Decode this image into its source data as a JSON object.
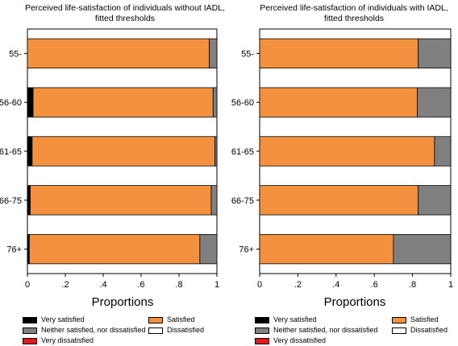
{
  "chart_data": [
    {
      "type": "bar",
      "orientation": "horizontal",
      "stacked": true,
      "title": "Perceived life-satisfaction of individuals without IADL,\nfitted thresholds",
      "title_lines": [
        "Perceived life-satisfaction of individuals without IADL,",
        "fitted thresholds"
      ],
      "xlabel": "Proportions",
      "xlim": [
        0,
        1
      ],
      "xticks": [
        "0",
        ".2",
        ".4",
        ".6",
        ".8",
        "1"
      ],
      "categories": [
        "55-",
        "56-60",
        "61-65",
        "66-75",
        "76+"
      ],
      "series": [
        {
          "name": "Very satisfied",
          "color": "#000000",
          "values": [
            0.0,
            0.03,
            0.025,
            0.015,
            0.01
          ]
        },
        {
          "name": "Satisfied",
          "color": "#f4913f",
          "values": [
            0.96,
            0.95,
            0.965,
            0.955,
            0.9
          ]
        },
        {
          "name": "Neither satisfied, nor dissatisfied",
          "color": "#808080",
          "values": [
            0.04,
            0.02,
            0.01,
            0.03,
            0.09
          ]
        },
        {
          "name": "Dissatisfied",
          "color": "#ffffff",
          "values": [
            0,
            0,
            0,
            0,
            0
          ]
        },
        {
          "name": "Very dissatisfied",
          "color": "#e3191c",
          "values": [
            0,
            0,
            0,
            0,
            0
          ]
        }
      ],
      "grid": false,
      "legend_position": "bottom"
    },
    {
      "type": "bar",
      "orientation": "horizontal",
      "stacked": true,
      "title": "Perceived life-satisfaction of individuals with IADL,\nfitted thresholds",
      "title_lines": [
        "Perceived life-satisfaction of individuals with IADL,",
        "fitted thresholds"
      ],
      "xlabel": "Proportions",
      "xlim": [
        0,
        1
      ],
      "xticks": [
        "0",
        ".2",
        ".4",
        ".6",
        ".8",
        "1"
      ],
      "categories": [
        "55-",
        "56-60",
        "61-65",
        "66-75",
        "76+"
      ],
      "series": [
        {
          "name": "Very satisfied",
          "color": "#000000",
          "values": [
            0,
            0,
            0,
            0,
            0
          ]
        },
        {
          "name": "Satisfied",
          "color": "#f4913f",
          "values": [
            0.83,
            0.825,
            0.915,
            0.83,
            0.7
          ]
        },
        {
          "name": "Neither satisfied, nor dissatisfied",
          "color": "#808080",
          "values": [
            0.17,
            0.175,
            0.085,
            0.17,
            0.3
          ]
        },
        {
          "name": "Dissatisfied",
          "color": "#ffffff",
          "values": [
            0,
            0,
            0,
            0,
            0
          ]
        },
        {
          "name": "Very dissatisfied",
          "color": "#e3191c",
          "values": [
            0,
            0,
            0,
            0,
            0
          ]
        }
      ],
      "grid": false,
      "legend_position": "bottom"
    }
  ],
  "legend": [
    {
      "name": "Very satisfied",
      "color": "#000000"
    },
    {
      "name": "Satisfied",
      "color": "#f4913f"
    },
    {
      "name": "Neither satisfied, nor dissatisfied",
      "color": "#808080"
    },
    {
      "name": "Dissatisfied",
      "color": "#ffffff"
    },
    {
      "name": "Very dissatisfied",
      "color": "#e3191c"
    }
  ]
}
